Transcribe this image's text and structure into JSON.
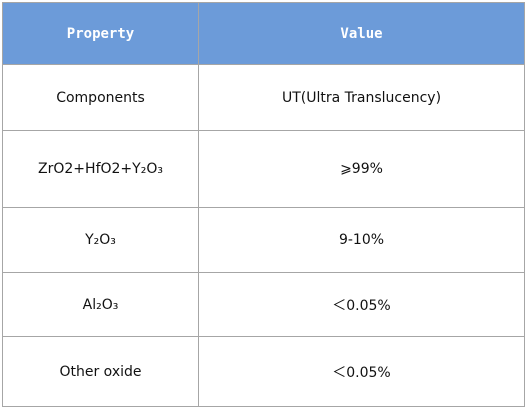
{
  "table": {
    "header": [
      "Property",
      "Value"
    ],
    "rows": [
      [
        "Components",
        "UT(Ultra Translucency)"
      ],
      [
        "ZrO2+HfO2+Y₂O₃",
        "⩾99%"
      ],
      [
        "Y₂O₃",
        "9-10%"
      ],
      [
        "Al₂O₃",
        "＜0.05%"
      ],
      [
        "Other oxide",
        "＜0.05%"
      ]
    ]
  }
}
